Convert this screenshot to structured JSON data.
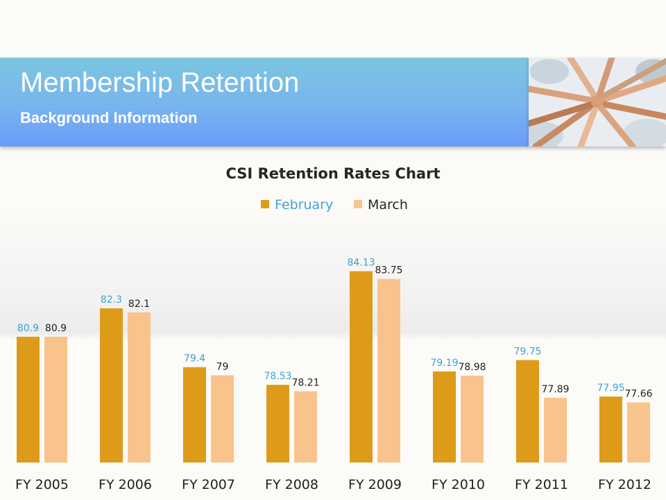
{
  "header": {
    "title": "Membership Retention",
    "subtitle": "Background Information"
  },
  "photo": {
    "description_icon": "hands-together-photo"
  },
  "colors": {
    "february": "#dd9b19",
    "march": "#f9c38c",
    "february_label": "#3aa3d6",
    "march_label": "#1f1f1f"
  },
  "chart_data": {
    "type": "bar",
    "title": "CSI Retention Rates Chart",
    "categories": [
      "FY 2005",
      "FY 2006",
      "FY 2007",
      "FY 2008",
      "FY 2009",
      "FY 2010",
      "FY 2011",
      "FY 2012"
    ],
    "series": [
      {
        "name": "February",
        "values": [
          80.9,
          82.3,
          79.4,
          78.53,
          84.13,
          79.19,
          79.75,
          77.95
        ]
      },
      {
        "name": "March",
        "values": [
          80.9,
          82.1,
          79,
          78.21,
          83.75,
          78.98,
          77.89,
          77.66
        ]
      }
    ],
    "data_labels": [
      [
        "80.9",
        "82.3",
        "79.4",
        "78.53",
        "84.13",
        "79.19",
        "79.75",
        "77.95"
      ],
      [
        "80.9",
        "82.1",
        "79",
        "78.21",
        "83.75",
        "78.98",
        "77.89",
        "77.66"
      ]
    ],
    "legend_position": "top-center",
    "grid": false,
    "ylim": [
      74.7,
      84.8
    ]
  }
}
